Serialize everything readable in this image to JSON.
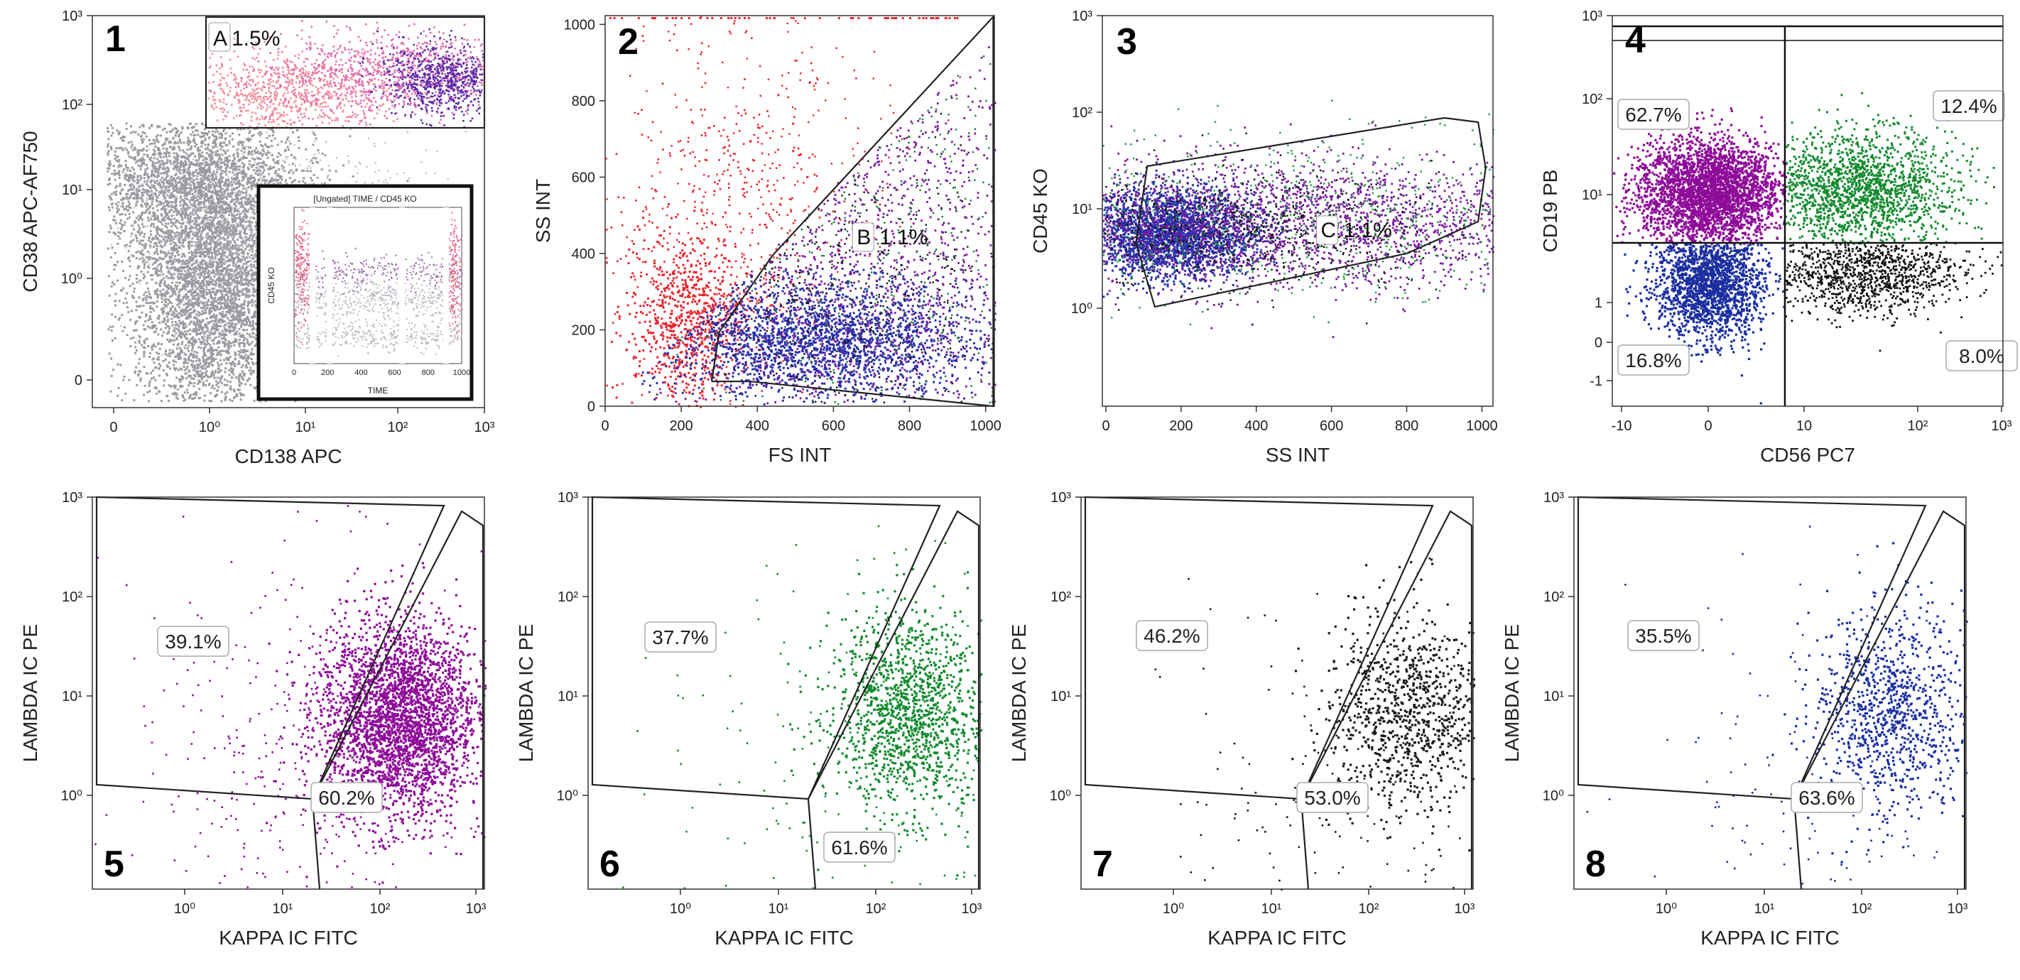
{
  "figure": {
    "colors": {
      "purple": "#8e0a98",
      "green": "#0f7e27",
      "black": "#1a1a1a",
      "blue": "#1a2ea0",
      "red": "#e8242c",
      "gray": "#9a9aa0",
      "pink": "#e06bb0"
    }
  },
  "chart_data": [
    {
      "id": "p1",
      "type": "scatter",
      "number": "1",
      "xlabel": "CD138 APC",
      "ylabel": "CD38 APC-AF750",
      "x_ticks": [
        "0",
        "10⁰",
        "10¹",
        "10²",
        "10³"
      ],
      "y_ticks": [
        "0",
        "10⁰",
        "10¹",
        "10²",
        "10³"
      ],
      "gate": {
        "label": "A",
        "value": "1.5%"
      },
      "inset": {
        "title": "[Ungated] TIME / CD45 KO",
        "xlabel": "TIME",
        "ylabel": "CD45 KO",
        "x_ticks": [
          "0",
          "200",
          "400",
          "600",
          "800",
          "1000"
        ]
      }
    },
    {
      "id": "p2",
      "type": "scatter",
      "number": "2",
      "xlabel": "FS INT",
      "ylabel": "SS INT",
      "x_ticks": [
        "0",
        "200",
        "400",
        "600",
        "800",
        "1000"
      ],
      "y_ticks": [
        "0",
        "200",
        "400",
        "600",
        "800",
        "1000"
      ],
      "xlim": [
        0,
        1023
      ],
      "ylim": [
        0,
        1023
      ],
      "gate": {
        "label": "B",
        "value": "1.1%"
      }
    },
    {
      "id": "p3",
      "type": "scatter",
      "number": "3",
      "xlabel": "SS INT",
      "ylabel": "CD45 KO",
      "x_ticks": [
        "0",
        "200",
        "400",
        "600",
        "800",
        "1000"
      ],
      "y_ticks": [
        "10⁰",
        "10¹",
        "10²",
        "10³"
      ],
      "gate": {
        "label": "C",
        "value": "1.1%"
      }
    },
    {
      "id": "p4",
      "type": "scatter",
      "number": "4",
      "xlabel": "CD56 PC7",
      "ylabel": "CD19 PB",
      "x_ticks": [
        "-10",
        "0",
        "10",
        "10²",
        "10³"
      ],
      "y_ticks": [
        "-1",
        "0",
        "1",
        "10¹",
        "10²",
        "10³"
      ],
      "quadrants": {
        "upper_left": "62.7%",
        "upper_right": "12.4%",
        "lower_left": "16.8%",
        "lower_right": "8.0%"
      }
    },
    {
      "id": "p5",
      "type": "scatter",
      "number": "5",
      "color": "purple",
      "xlabel": "KAPPA IC FITC",
      "ylabel": "LAMBDA IC PE",
      "x_ticks": [
        "10⁰",
        "10¹",
        "10²",
        "10³"
      ],
      "y_ticks": [
        "10⁰",
        "10¹",
        "10²",
        "10³"
      ],
      "lambda_pct": "39.1%",
      "kappa_pct": "60.2%"
    },
    {
      "id": "p6",
      "type": "scatter",
      "number": "6",
      "color": "green",
      "xlabel": "KAPPA IC FITC",
      "ylabel": "LAMBDA IC PE",
      "x_ticks": [
        "10⁰",
        "10¹",
        "10²",
        "10³"
      ],
      "y_ticks": [
        "10⁰",
        "10¹",
        "10²",
        "10³"
      ],
      "lambda_pct": "37.7%",
      "kappa_pct": "61.6%"
    },
    {
      "id": "p7",
      "type": "scatter",
      "number": "7",
      "color": "black",
      "xlabel": "KAPPA IC FITC",
      "ylabel": "LAMBDA IC PE",
      "x_ticks": [
        "10⁰",
        "10¹",
        "10²",
        "10³"
      ],
      "y_ticks": [
        "10⁰",
        "10¹",
        "10²",
        "10³"
      ],
      "lambda_pct": "46.2%",
      "kappa_pct": "53.0%"
    },
    {
      "id": "p8",
      "type": "scatter",
      "number": "8",
      "color": "blue",
      "xlabel": "KAPPA IC FITC",
      "ylabel": "LAMBDA IC PE",
      "x_ticks": [
        "10⁰",
        "10¹",
        "10²",
        "10³"
      ],
      "y_ticks": [
        "10⁰",
        "10¹",
        "10²",
        "10³"
      ],
      "lambda_pct": "35.5%",
      "kappa_pct": "63.6%"
    }
  ]
}
